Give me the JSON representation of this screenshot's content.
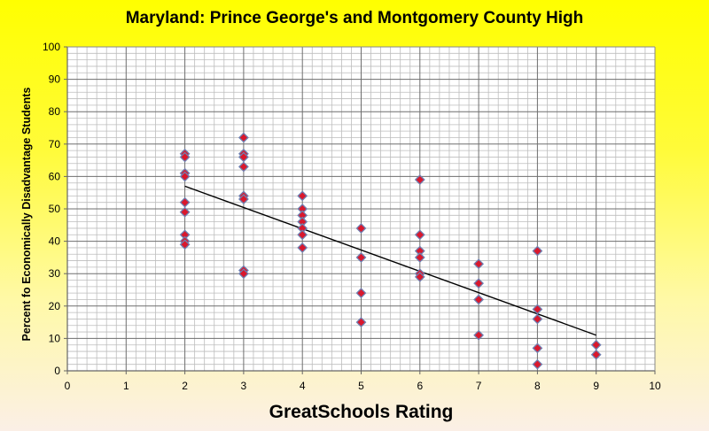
{
  "chart_data": {
    "type": "scatter",
    "title": "Maryland: Prince George's and Montgomery County High",
    "xlabel": "GreatSchools Rating",
    "ylabel": "Percent fo Economically Disadvantage Students",
    "xlim": [
      0,
      10
    ],
    "ylim": [
      0,
      100
    ],
    "x_ticks": [
      0,
      1,
      2,
      3,
      4,
      5,
      6,
      7,
      8,
      9,
      10
    ],
    "y_ticks": [
      0,
      10,
      20,
      30,
      40,
      50,
      60,
      70,
      80,
      90,
      100
    ],
    "grid": true,
    "legend": "none",
    "marker": "diamond",
    "marker_color": "#d9182d",
    "marker_edge_color": "#6f7fb0",
    "points": [
      {
        "x": 2,
        "y": 67
      },
      {
        "x": 2,
        "y": 66
      },
      {
        "x": 2,
        "y": 61
      },
      {
        "x": 2,
        "y": 60
      },
      {
        "x": 2,
        "y": 52
      },
      {
        "x": 2,
        "y": 49
      },
      {
        "x": 2,
        "y": 42
      },
      {
        "x": 2,
        "y": 40
      },
      {
        "x": 2,
        "y": 39
      },
      {
        "x": 3,
        "y": 72
      },
      {
        "x": 3,
        "y": 67
      },
      {
        "x": 3,
        "y": 66
      },
      {
        "x": 3,
        "y": 63
      },
      {
        "x": 3,
        "y": 54
      },
      {
        "x": 3,
        "y": 53
      },
      {
        "x": 3,
        "y": 31
      },
      {
        "x": 3,
        "y": 30
      },
      {
        "x": 4,
        "y": 54
      },
      {
        "x": 4,
        "y": 50
      },
      {
        "x": 4,
        "y": 48
      },
      {
        "x": 4,
        "y": 46
      },
      {
        "x": 4,
        "y": 44
      },
      {
        "x": 4,
        "y": 42
      },
      {
        "x": 4,
        "y": 38
      },
      {
        "x": 5,
        "y": 44
      },
      {
        "x": 5,
        "y": 35
      },
      {
        "x": 5,
        "y": 24
      },
      {
        "x": 5,
        "y": 15
      },
      {
        "x": 6,
        "y": 59
      },
      {
        "x": 6,
        "y": 42
      },
      {
        "x": 6,
        "y": 37
      },
      {
        "x": 6,
        "y": 35
      },
      {
        "x": 6,
        "y": 30
      },
      {
        "x": 6,
        "y": 29
      },
      {
        "x": 7,
        "y": 33
      },
      {
        "x": 7,
        "y": 27
      },
      {
        "x": 7,
        "y": 22
      },
      {
        "x": 7,
        "y": 11
      },
      {
        "x": 8,
        "y": 37
      },
      {
        "x": 8,
        "y": 19
      },
      {
        "x": 8,
        "y": 16
      },
      {
        "x": 8,
        "y": 7
      },
      {
        "x": 8,
        "y": 2
      },
      {
        "x": 9,
        "y": 8
      },
      {
        "x": 9,
        "y": 5
      }
    ],
    "trendline": {
      "x": [
        2,
        9
      ],
      "y": [
        57,
        11
      ],
      "color": "#000000"
    }
  }
}
